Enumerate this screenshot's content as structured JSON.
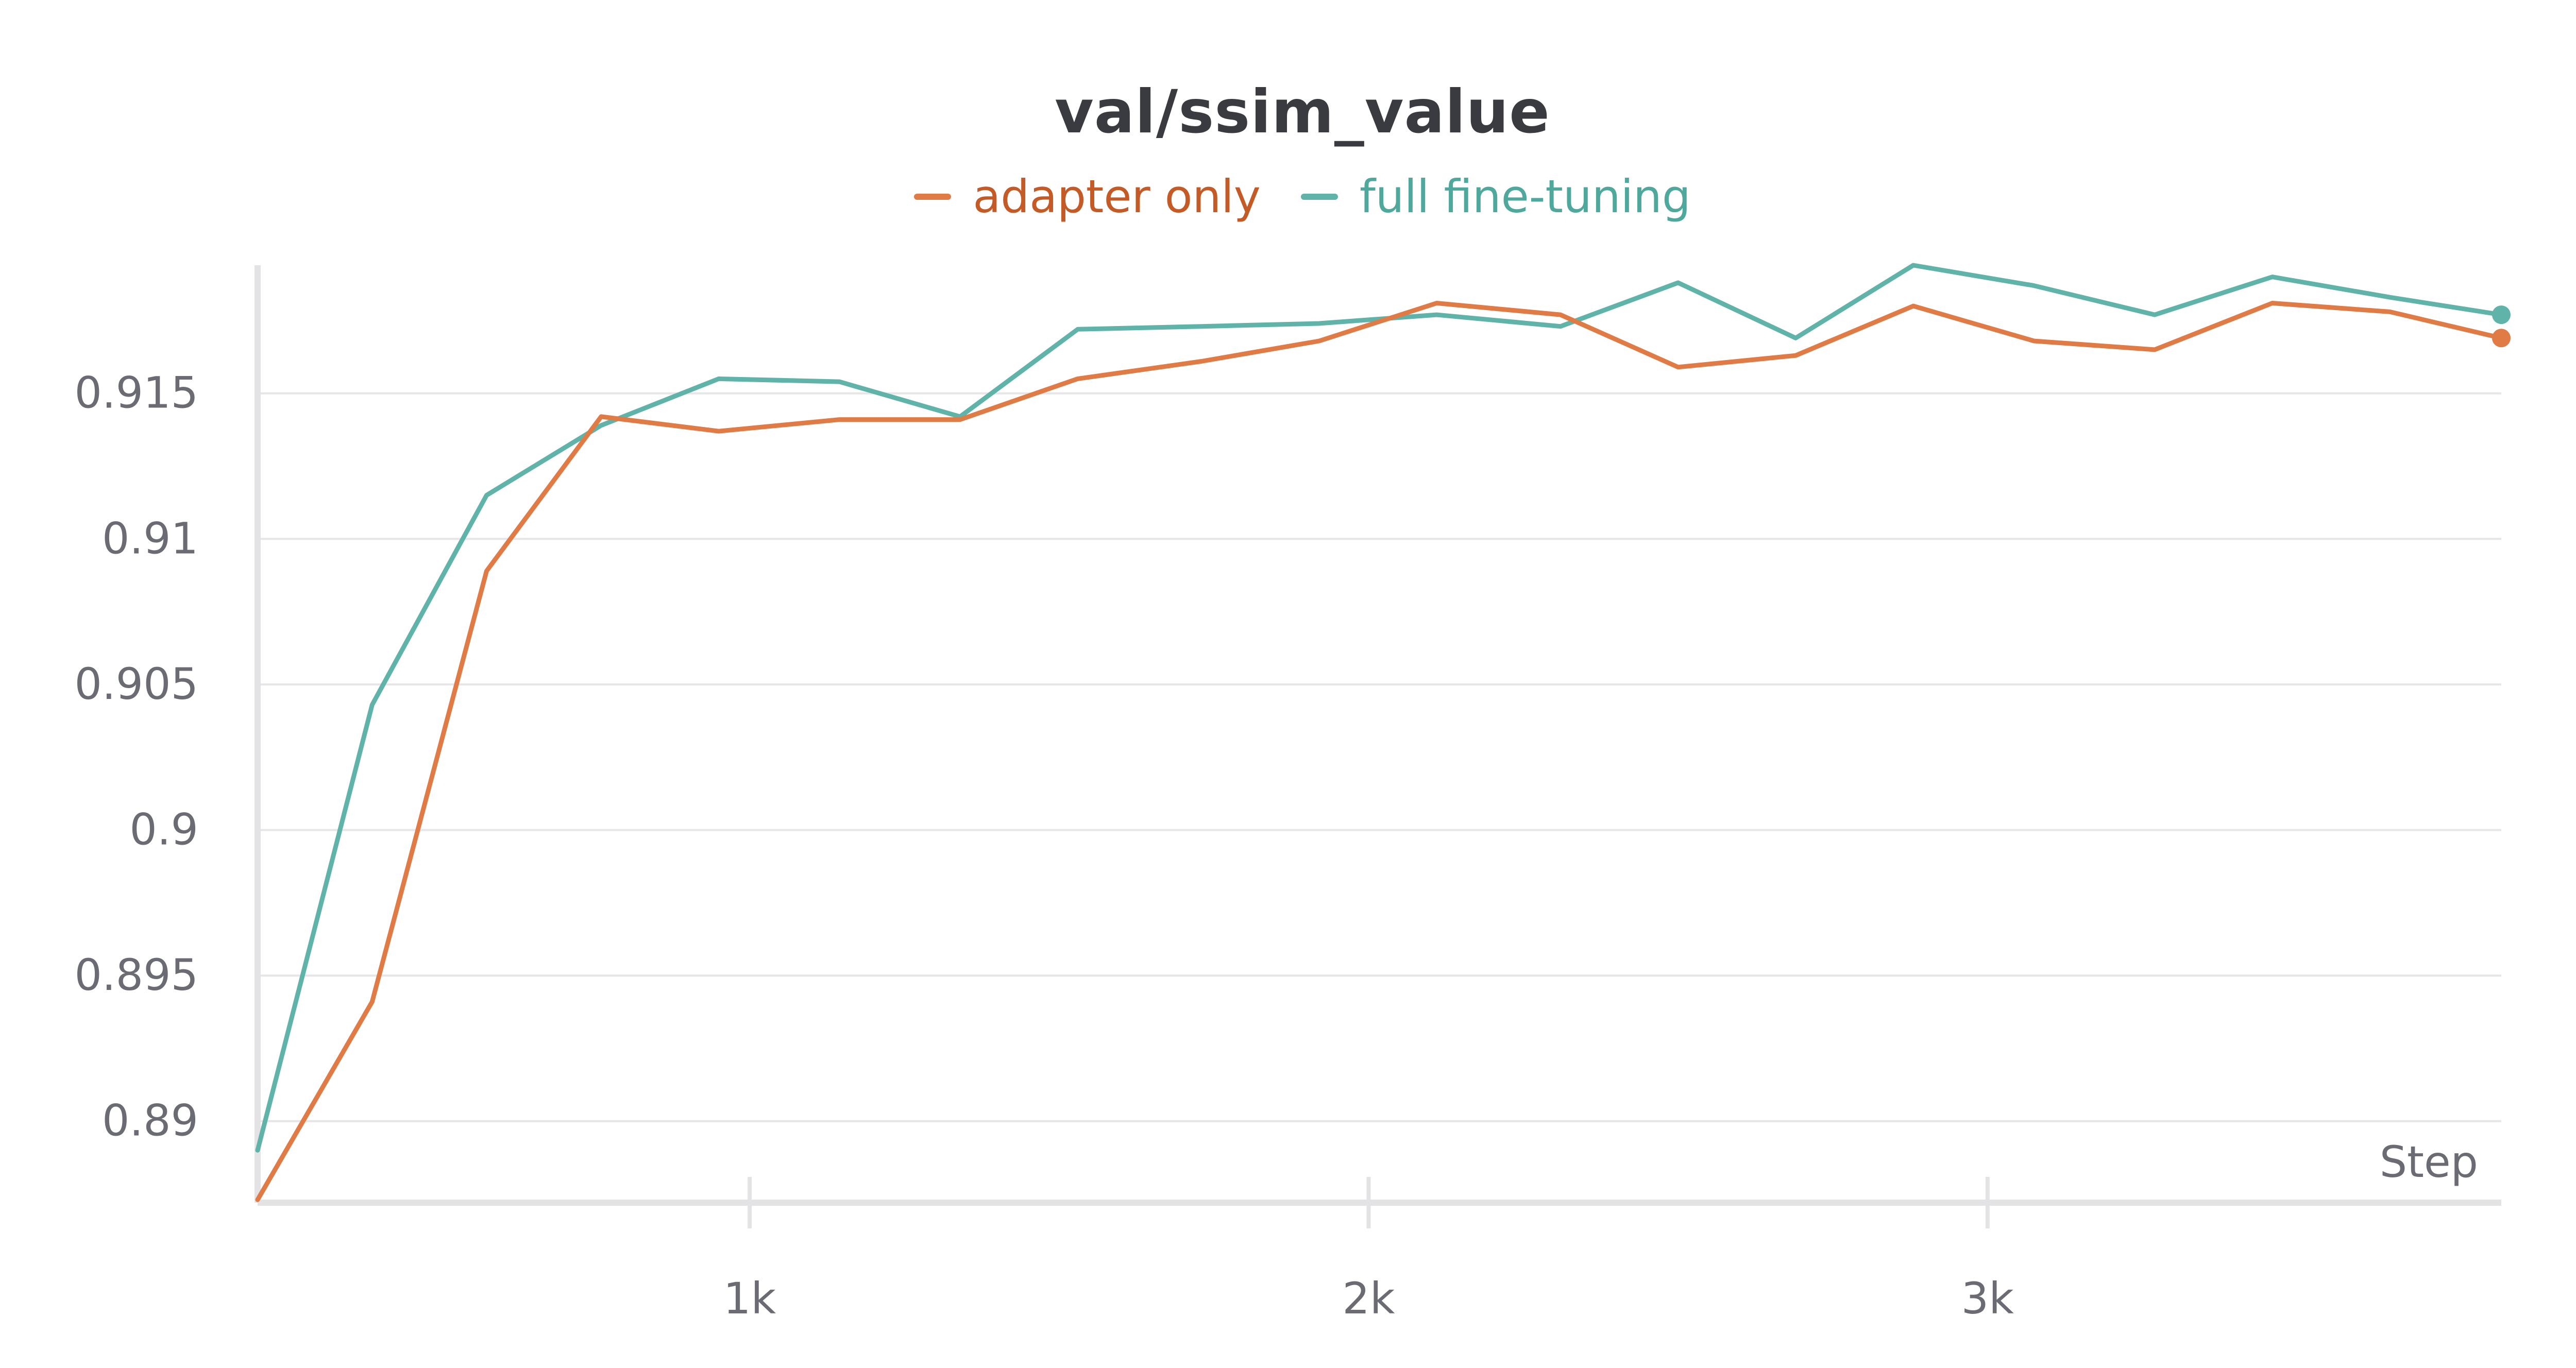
{
  "chart_data": {
    "type": "line",
    "title": "val/ssim_value",
    "xlabel": "Step",
    "ylabel": "",
    "xlim": [
      205,
      3830
    ],
    "ylim": [
      0.8872,
      0.9194
    ],
    "x_ticks": [
      1000,
      2000,
      3000
    ],
    "x_tick_labels": [
      "1k",
      "2k",
      "3k"
    ],
    "y_ticks": [
      0.89,
      0.895,
      0.9,
      0.905,
      0.91,
      0.915
    ],
    "y_tick_labels": [
      "0.89",
      "0.895",
      "0.9",
      "0.905",
      "0.91",
      "0.915"
    ],
    "grid": true,
    "legend_position": "top-center",
    "series": [
      {
        "name": "adapter only",
        "color": "#e07b45",
        "label_color": "#c45a25",
        "x": [
          205,
          390,
          575,
          760,
          950,
          1145,
          1340,
          1530,
          1730,
          1920,
          2110,
          2310,
          2500,
          2690,
          2880,
          3075,
          3270,
          3460,
          3650,
          3830
        ],
        "y": [
          0.8873,
          0.8941,
          0.9089,
          0.9142,
          0.9137,
          0.9141,
          0.9141,
          0.9155,
          0.9161,
          0.9168,
          0.9181,
          0.9177,
          0.9159,
          0.9163,
          0.918,
          0.9168,
          0.9165,
          0.9181,
          0.9178,
          0.9169
        ]
      },
      {
        "name": "full fine-tuning",
        "color": "#5fb3a8",
        "label_color": "#4fa89c",
        "x": [
          205,
          390,
          575,
          760,
          950,
          1145,
          1340,
          1530,
          1730,
          1920,
          2110,
          2310,
          2500,
          2690,
          2880,
          3075,
          3270,
          3460,
          3650,
          3830
        ],
        "y": [
          0.889,
          0.9043,
          0.9115,
          0.9139,
          0.9155,
          0.9154,
          0.9142,
          0.9172,
          0.9173,
          0.9174,
          0.9177,
          0.9173,
          0.9188,
          0.9169,
          0.9194,
          0.9187,
          0.9177,
          0.919,
          0.9183,
          0.9177
        ]
      }
    ]
  }
}
